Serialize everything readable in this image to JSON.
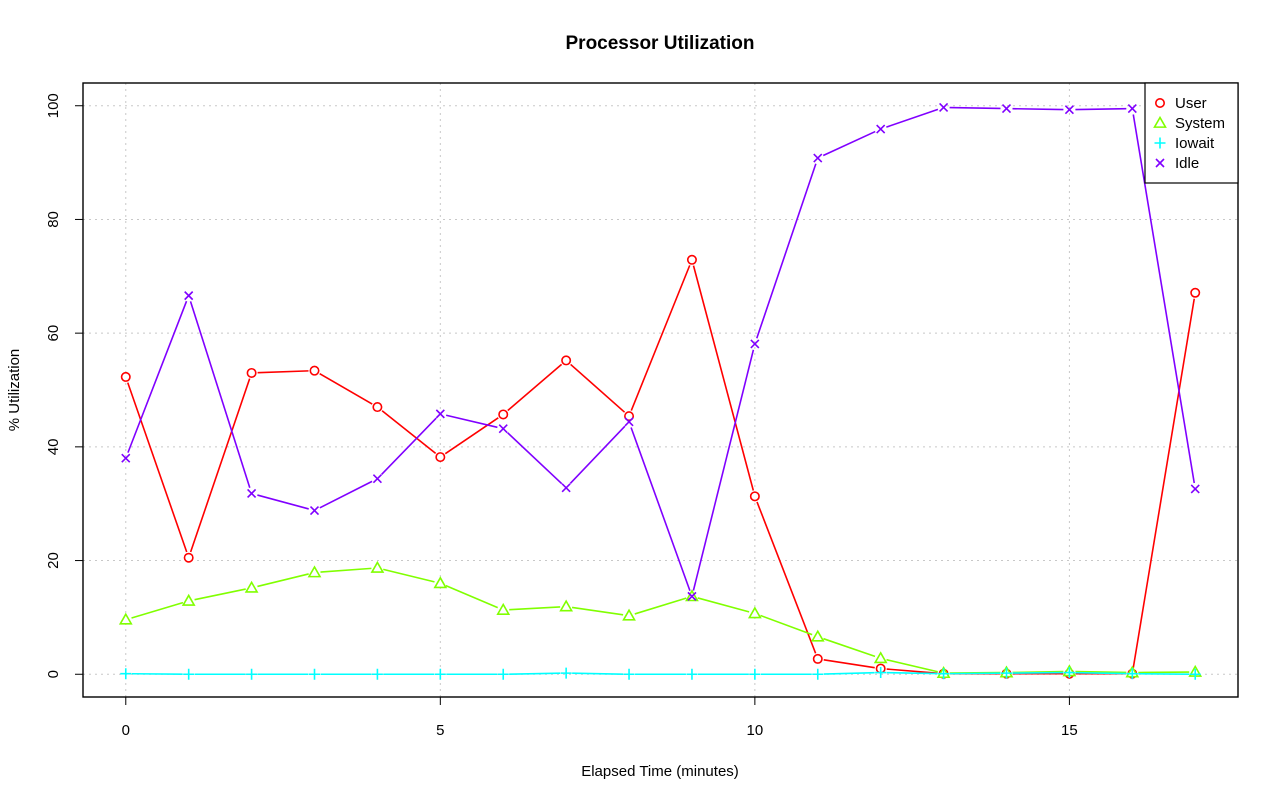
{
  "chart_data": {
    "type": "line",
    "title": "Processor Utilization",
    "xlabel": "Elapsed Time (minutes)",
    "ylabel": "% Utilization",
    "xlim": [
      -0.68,
      17.68
    ],
    "ylim": [
      -4,
      104
    ],
    "x_ticks": [
      0,
      5,
      10,
      15
    ],
    "y_ticks": [
      0,
      20,
      40,
      60,
      80,
      100
    ],
    "grid": true,
    "legend_position": "top-right",
    "x": [
      0,
      1,
      2,
      3,
      4,
      5,
      6,
      7,
      8,
      9,
      10,
      11,
      12,
      13,
      14,
      15,
      16,
      17
    ],
    "series": [
      {
        "name": "User",
        "color": "#ff0000",
        "marker": "circle",
        "values": [
          52.3,
          20.5,
          53.0,
          53.4,
          47.0,
          38.2,
          45.7,
          55.2,
          45.4,
          72.9,
          31.3,
          2.7,
          1.0,
          0.1,
          0.1,
          0.1,
          0.1,
          67.1
        ]
      },
      {
        "name": "System",
        "color": "#80ff00",
        "marker": "triangle",
        "values": [
          9.6,
          12.9,
          15.2,
          17.9,
          18.7,
          16.0,
          11.3,
          11.9,
          10.3,
          13.7,
          10.7,
          6.6,
          2.8,
          0.2,
          0.3,
          0.5,
          0.3,
          0.4
        ]
      },
      {
        "name": "Iowait",
        "color": "#00ffff",
        "marker": "plus",
        "values": [
          0.1,
          0.0,
          0.0,
          0.0,
          0.0,
          0.0,
          0.0,
          0.2,
          0.0,
          0.0,
          0.0,
          0.0,
          0.3,
          0.1,
          0.2,
          0.3,
          0.1,
          0.0
        ]
      },
      {
        "name": "Idle",
        "color": "#8000ff",
        "marker": "cross",
        "values": [
          38.0,
          66.6,
          31.8,
          28.8,
          34.4,
          45.8,
          43.2,
          32.8,
          44.4,
          13.7,
          58.1,
          90.8,
          95.9,
          99.7,
          99.5,
          99.3,
          99.5,
          32.6
        ]
      }
    ]
  }
}
